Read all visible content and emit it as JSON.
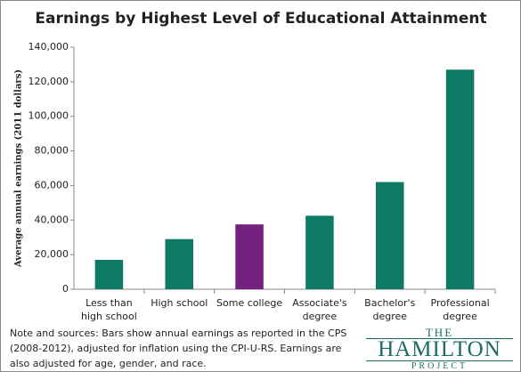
{
  "chart_data": {
    "type": "bar",
    "title": "Earnings by Highest Level of Educational Attainment",
    "y_label": "Average annual earnings (2011 dollars)",
    "categories": [
      "Less than high school",
      "High school",
      "Some college",
      "Associate's degree",
      "Bachelor's degree",
      "Professional degree"
    ],
    "values": [
      17000,
      29000,
      37500,
      42500,
      62000,
      127000
    ],
    "colors": [
      "#0e7a66",
      "#0e7a66",
      "#76217f",
      "#0e7a66",
      "#0e7a66",
      "#0e7a66"
    ],
    "ylim": [
      0,
      140000
    ],
    "yticks": [
      0,
      {
        "value": 20000,
        "label": "20,000"
      },
      {
        "value": 40000,
        "label": "40,000"
      },
      {
        "value": 60000,
        "label": "60,000"
      },
      {
        "value": 80000,
        "label": "80,000"
      },
      {
        "value": 100000,
        "label": "100,000"
      },
      {
        "value": 120000,
        "label": "120,000"
      },
      {
        "value": 140000,
        "label": "140,000"
      }
    ],
    "grid": false
  },
  "note": "Note and sources: Bars show annual earnings as reported in the CPS (2008-2012), adjusted for inflation using the CPI-U-RS. Earnings are also adjusted for age, gender, and race.",
  "logo": {
    "top": "THE",
    "middle": "HAMILTON",
    "bottom": "PROJECT"
  }
}
